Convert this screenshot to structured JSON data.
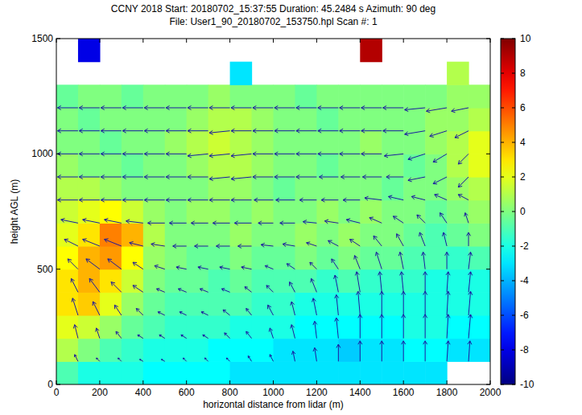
{
  "chart_data": {
    "type": "heatmap",
    "title": "CCNY 2018  Start: 20180702_15:37:55 Duration: 45.2484 s Azimuth: 90 deg",
    "subtitle": "File: User1_90_20180702_153750.hpl  Scan #: 1",
    "x_label": "horizontal distance from lidar (m)",
    "y_label": "height AGL (m)",
    "xlim": [
      0,
      2000
    ],
    "ylim": [
      0,
      1500
    ],
    "xticks": [
      0,
      200,
      400,
      600,
      800,
      1000,
      1200,
      1400,
      1600,
      1800,
      2000
    ],
    "yticks": [
      0,
      500,
      1000,
      1500
    ],
    "cells": {
      "x_edges": [
        0,
        100,
        200,
        300,
        400,
        500,
        600,
        700,
        800,
        900,
        1000,
        1100,
        1200,
        1300,
        1400,
        1500,
        1600,
        1700,
        1800,
        1900,
        2000
      ],
      "z_edges": [
        0,
        100,
        200,
        300,
        400,
        500,
        600,
        700,
        800,
        900,
        1000,
        1100,
        1200,
        1300,
        1400,
        1500
      ],
      "values": [
        [
          -1,
          -2,
          -2,
          -2,
          -2.5,
          -2.5,
          -2.5,
          -2.5,
          -3,
          -3,
          -3,
          -3,
          -3,
          -3,
          -3,
          -3,
          -3,
          -3,
          null,
          null
        ],
        [
          1,
          0,
          -1,
          -1.5,
          -2,
          -2,
          -2,
          -2.5,
          -2.5,
          -2.5,
          -3,
          -3,
          -3,
          -3.5,
          -3,
          -3,
          -2.5,
          -2.5,
          -3,
          -3
        ],
        [
          2,
          1.5,
          0.5,
          -0.5,
          -1,
          -1.5,
          -1.5,
          -1.5,
          -2,
          -2,
          -2,
          -2.5,
          -2.5,
          -2.5,
          -2.5,
          -2.5,
          -2,
          -2,
          -2.5,
          -2.5
        ],
        [
          3,
          3.5,
          2,
          0.5,
          -0.5,
          -1,
          -1,
          -1,
          -1,
          -1.5,
          -1.5,
          -2,
          -2,
          -2,
          -2,
          -2,
          -2,
          -2,
          -2,
          -2
        ],
        [
          3,
          4,
          3,
          1.5,
          0,
          -0.5,
          -0.5,
          -1,
          -0.5,
          -1,
          -1,
          -1,
          -1.5,
          -1,
          -1.5,
          -1.5,
          -1.5,
          -2,
          -2,
          -2
        ],
        [
          2.5,
          4,
          4.5,
          2.5,
          0.5,
          0,
          -0.5,
          -0.5,
          0,
          -0.5,
          -0.5,
          0,
          -0.5,
          0,
          -0.5,
          -0.5,
          -1,
          -1,
          -1.5,
          -1
        ],
        [
          2,
          3,
          5,
          4,
          1,
          0,
          0,
          0,
          0.5,
          0,
          0,
          0.5,
          0,
          0.5,
          0,
          0,
          -0.5,
          -1,
          -0.5,
          0
        ],
        [
          1.5,
          2,
          2.5,
          1.5,
          0.5,
          0,
          0.5,
          0.5,
          0,
          0.5,
          0,
          0,
          0.5,
          0,
          0.5,
          0,
          0,
          -0.5,
          0,
          0.5
        ],
        [
          1,
          1,
          0.5,
          0,
          0,
          0,
          0,
          0.5,
          0.5,
          0,
          -0.5,
          0,
          0,
          0,
          0,
          -0.5,
          0,
          0,
          0.5,
          1
        ],
        [
          0.5,
          0,
          0,
          -0.5,
          0,
          0,
          0.5,
          1,
          1,
          0.5,
          0,
          0,
          -0.5,
          0,
          0,
          0,
          -0.5,
          0,
          1,
          2
        ],
        [
          0,
          0,
          -0.5,
          0,
          0,
          0.5,
          1,
          1.5,
          1,
          0.5,
          0,
          0,
          0,
          0,
          0.5,
          0,
          0,
          0.5,
          1,
          2
        ],
        [
          0,
          -0.5,
          0,
          0,
          0,
          0,
          0.5,
          1,
          1,
          0.5,
          0,
          0,
          -0.5,
          0,
          0,
          0,
          0,
          0.5,
          0.5,
          1
        ],
        [
          -0.5,
          0,
          0,
          -0.5,
          0,
          0,
          0,
          0.5,
          0,
          0,
          0,
          -0.5,
          0,
          0,
          0,
          0,
          0,
          0,
          0.5,
          0.5
        ],
        [
          null,
          null,
          null,
          null,
          null,
          null,
          null,
          null,
          -3,
          null,
          null,
          null,
          null,
          null,
          null,
          null,
          null,
          null,
          1,
          null
        ],
        [
          null,
          -8,
          null,
          null,
          null,
          null,
          null,
          null,
          null,
          null,
          null,
          null,
          null,
          null,
          9,
          null,
          null,
          null,
          null,
          null
        ]
      ]
    },
    "colorbar": {
      "lim": [
        -10,
        10
      ],
      "ticks": [
        -10,
        -8,
        -6,
        -4,
        -2,
        0,
        2,
        4,
        6,
        8,
        10
      ]
    },
    "vectors": {
      "x": [
        100,
        200,
        300,
        400,
        500,
        600,
        700,
        800,
        900,
        1000,
        1100,
        1200,
        1300,
        1400,
        1500,
        1600,
        1700,
        1800,
        1900
      ],
      "z": [
        100,
        200,
        300,
        400,
        500,
        600,
        700,
        800,
        900,
        1000,
        1100,
        1200
      ],
      "u": [
        [
          -0.5,
          -0.5,
          -0.5,
          -0.5,
          -0.5,
          -0.5,
          -0.5,
          -0.5,
          -0.5,
          -0.5,
          -0.3,
          -0.3,
          0,
          0,
          0,
          0,
          0,
          0.2,
          0.2
        ],
        [
          -0.5,
          -0.5,
          -0.8,
          -0.8,
          -0.8,
          -0.8,
          -0.8,
          -0.8,
          -0.8,
          -0.5,
          -0.5,
          -0.3,
          -0.3,
          0,
          0,
          0,
          0,
          0.2,
          0.3
        ],
        [
          -0.8,
          -1,
          -1,
          -1,
          -1,
          -1,
          -1,
          -1,
          -0.8,
          -0.8,
          -0.5,
          -0.5,
          -0.3,
          -0.3,
          0,
          0,
          0,
          0.2,
          0.3
        ],
        [
          -1,
          -1.5,
          -1.5,
          -1.5,
          -1.2,
          -1.2,
          -1.2,
          -1.2,
          -1,
          -1,
          -0.8,
          -0.8,
          -0.5,
          -0.5,
          -0.3,
          -0.3,
          0,
          0.2,
          0.3
        ],
        [
          -1.5,
          -2,
          -2,
          -1.5,
          -1.5,
          -1.5,
          -1.5,
          -1.5,
          -1.5,
          -1.2,
          -1.2,
          -1,
          -1,
          -0.8,
          -0.8,
          -0.5,
          -0.3,
          0,
          0.3
        ],
        [
          -2,
          -2.5,
          -2.5,
          -2,
          -2,
          -2,
          -2,
          -2,
          -2,
          -1.8,
          -1.8,
          -1.5,
          -1.5,
          -1.5,
          -1.2,
          -1,
          -0.8,
          -0.5,
          0
        ],
        [
          -2.5,
          -2.5,
          -2.5,
          -2.5,
          -2.5,
          -2.5,
          -2.5,
          -2.5,
          -2.5,
          -2.2,
          -2.2,
          -2,
          -2,
          -2,
          -1.8,
          -1.5,
          -1.2,
          -1,
          -0.5
        ],
        [
          -3,
          -3,
          -3,
          -3,
          -3,
          -3,
          -3,
          -3,
          -3,
          -2.8,
          -2.8,
          -2.5,
          -2.5,
          -2.5,
          -2.5,
          -2.2,
          -2,
          -1.8,
          -1.5
        ],
        [
          -3,
          -3,
          -3,
          -3,
          -3,
          -3,
          -3,
          -3,
          -3,
          -3,
          -3,
          -3,
          -2.8,
          -2.8,
          -2.8,
          -2.5,
          -2.5,
          -2,
          -1.5
        ],
        [
          -3,
          -3,
          -3,
          -3,
          -3,
          -3,
          -3,
          -3,
          -3,
          -3,
          -3,
          -3,
          -3,
          -3,
          -3,
          -2.8,
          -2.5,
          -2,
          -1.5
        ],
        [
          -3,
          -3,
          -3,
          -3,
          -3,
          -3,
          -3,
          -3,
          -3,
          -3,
          -3,
          -3,
          -3,
          -3,
          -3,
          -3,
          -3,
          -2.5,
          -2
        ],
        [
          -3,
          -3,
          -3,
          -3,
          -3,
          -3,
          -3,
          -3,
          -3,
          -3,
          -3,
          -3,
          -3,
          -3,
          -3,
          -3,
          -3,
          -3,
          -2.5
        ]
      ],
      "w": [
        [
          1,
          0.5,
          0.5,
          0.3,
          0.3,
          0.5,
          0.5,
          0.5,
          0.8,
          1,
          1.5,
          2,
          2.5,
          3,
          3,
          3,
          3,
          3,
          3
        ],
        [
          2,
          1.5,
          1,
          0.5,
          0.5,
          0.5,
          0.5,
          0.8,
          1,
          1.5,
          2,
          2.5,
          3,
          3.5,
          3.5,
          3.5,
          3.5,
          3.5,
          3.5
        ],
        [
          2.5,
          2,
          1.5,
          1,
          0.5,
          0.5,
          0.5,
          0.8,
          1,
          1.5,
          2,
          2.5,
          3,
          3.5,
          3.5,
          3.5,
          3.5,
          3.5,
          3.5
        ],
        [
          2,
          2,
          1.5,
          1,
          0.5,
          0.5,
          0.5,
          0.5,
          0.8,
          1,
          1.5,
          2,
          2.5,
          3,
          3,
          3,
          3,
          3,
          3
        ],
        [
          1.5,
          1.5,
          1.5,
          1,
          0.5,
          0.3,
          0.3,
          0.3,
          0.3,
          0.5,
          0.8,
          1,
          1.5,
          2,
          2.5,
          2.5,
          2.5,
          2.5,
          2.5
        ],
        [
          1,
          1,
          1,
          0.5,
          0.3,
          0,
          0,
          0,
          0,
          0.2,
          0.3,
          0.5,
          0.8,
          1,
          1.5,
          1.8,
          2,
          2,
          2
        ],
        [
          0.5,
          0.5,
          0.5,
          0.3,
          0,
          0,
          0,
          0,
          0,
          0,
          0,
          0.2,
          0.3,
          0.5,
          0.8,
          1,
          1.2,
          1.5,
          1.5
        ],
        [
          0,
          0,
          0,
          0,
          0,
          0,
          0,
          0,
          0,
          0,
          0,
          0,
          0,
          0,
          0.3,
          0.5,
          0.5,
          0.8,
          0.8
        ],
        [
          0,
          0,
          0,
          0,
          0,
          0,
          0,
          -0.3,
          -0.3,
          0,
          0,
          0,
          0,
          0,
          0,
          0,
          -0.5,
          -1,
          -1.5
        ],
        [
          0,
          0,
          0,
          0,
          0,
          0,
          -0.3,
          -0.3,
          -0.3,
          0,
          0,
          0,
          0,
          0,
          0,
          -0.3,
          -0.8,
          -1.2,
          -1.5
        ],
        [
          0,
          0,
          0,
          0,
          0,
          0,
          0,
          -0.3,
          0,
          0,
          0,
          0,
          0,
          0,
          0,
          0,
          -0.5,
          -0.8,
          -1
        ],
        [
          0,
          0,
          0,
          0,
          0,
          0,
          0,
          0,
          0,
          0,
          0,
          0,
          0,
          0,
          0,
          0,
          -0.3,
          -0.5,
          -0.5
        ]
      ]
    }
  }
}
